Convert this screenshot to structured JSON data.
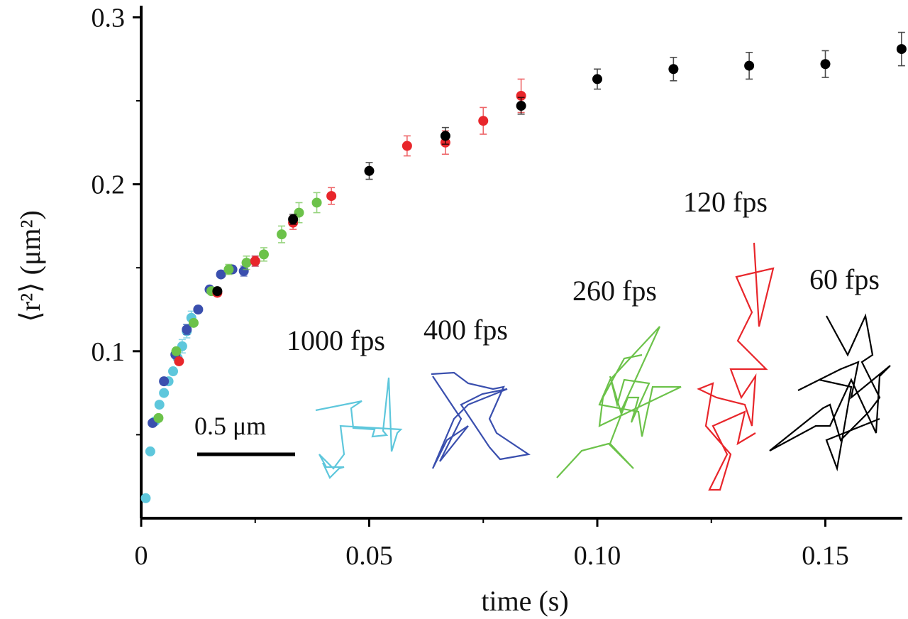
{
  "chart_data": {
    "type": "scatter",
    "title": "",
    "xlabel": "time (s)",
    "ylabel": "⟨r²⟩ (μm²)",
    "xlim": [
      0,
      0.168
    ],
    "ylim": [
      0,
      0.31
    ],
    "grid": false,
    "x_ticks": [
      {
        "value": 0,
        "label": "0"
      },
      {
        "value": 0.05,
        "label": "0.05"
      },
      {
        "value": 0.1,
        "label": "0.10"
      },
      {
        "value": 0.15,
        "label": "0.15"
      }
    ],
    "y_ticks": [
      {
        "value": 0.1,
        "label": "0.1"
      },
      {
        "value": 0.2,
        "label": "0.2"
      },
      {
        "value": 0.3,
        "label": "0.3"
      }
    ],
    "series": [
      {
        "name": "1000 fps",
        "color": "#5ec7dc",
        "points": [
          {
            "x": 0.001,
            "y": 0.012,
            "err": 0
          },
          {
            "x": 0.002,
            "y": 0.04,
            "err": 0
          },
          {
            "x": 0.003,
            "y": 0.058,
            "err": 0
          },
          {
            "x": 0.004,
            "y": 0.068,
            "err": 0
          },
          {
            "x": 0.005,
            "y": 0.075,
            "err": 0
          },
          {
            "x": 0.006,
            "y": 0.082,
            "err": 0
          },
          {
            "x": 0.007,
            "y": 0.088,
            "err": 0
          },
          {
            "x": 0.008,
            "y": 0.096,
            "err": 0.003
          },
          {
            "x": 0.009,
            "y": 0.103,
            "err": 0.004
          },
          {
            "x": 0.01,
            "y": 0.112,
            "err": 0.004
          },
          {
            "x": 0.011,
            "y": 0.12,
            "err": 0.004
          }
        ]
      },
      {
        "name": "400 fps",
        "color": "#3a4fae",
        "points": [
          {
            "x": 0.0025,
            "y": 0.057,
            "err": 0
          },
          {
            "x": 0.005,
            "y": 0.082,
            "err": 0
          },
          {
            "x": 0.0075,
            "y": 0.098,
            "err": 0
          },
          {
            "x": 0.01,
            "y": 0.113,
            "err": 0.003
          },
          {
            "x": 0.0125,
            "y": 0.125,
            "err": 0
          },
          {
            "x": 0.015,
            "y": 0.137,
            "err": 0
          },
          {
            "x": 0.0175,
            "y": 0.146,
            "err": 0
          },
          {
            "x": 0.02,
            "y": 0.149,
            "err": 0
          },
          {
            "x": 0.0225,
            "y": 0.148,
            "err": 0.003
          },
          {
            "x": 0.025,
            "y": 0.154,
            "err": 0.003
          }
        ]
      },
      {
        "name": "260 fps",
        "color": "#6cc24a",
        "points": [
          {
            "x": 0.0038,
            "y": 0.06,
            "err": 0
          },
          {
            "x": 0.0077,
            "y": 0.1,
            "err": 0
          },
          {
            "x": 0.0115,
            "y": 0.117,
            "err": 0
          },
          {
            "x": 0.0154,
            "y": 0.136,
            "err": 0
          },
          {
            "x": 0.0192,
            "y": 0.149,
            "err": 0.003
          },
          {
            "x": 0.0231,
            "y": 0.153,
            "err": 0.004
          },
          {
            "x": 0.0269,
            "y": 0.158,
            "err": 0.004
          },
          {
            "x": 0.0308,
            "y": 0.17,
            "err": 0.005
          },
          {
            "x": 0.0346,
            "y": 0.183,
            "err": 0.006
          },
          {
            "x": 0.0385,
            "y": 0.189,
            "err": 0.006
          }
        ]
      },
      {
        "name": "120 fps",
        "color": "#e8262b",
        "points": [
          {
            "x": 0.0083,
            "y": 0.094,
            "err": 0
          },
          {
            "x": 0.0167,
            "y": 0.135,
            "err": 0
          },
          {
            "x": 0.025,
            "y": 0.154,
            "err": 0.003
          },
          {
            "x": 0.0333,
            "y": 0.177,
            "err": 0.004
          },
          {
            "x": 0.0417,
            "y": 0.193,
            "err": 0.005
          },
          {
            "x": 0.0583,
            "y": 0.223,
            "err": 0.006
          },
          {
            "x": 0.0667,
            "y": 0.225,
            "err": 0.007
          },
          {
            "x": 0.075,
            "y": 0.238,
            "err": 0.008
          },
          {
            "x": 0.0833,
            "y": 0.253,
            "err": 0.01
          }
        ]
      },
      {
        "name": "60 fps",
        "color": "#000000",
        "points": [
          {
            "x": 0.0167,
            "y": 0.136,
            "err": 0
          },
          {
            "x": 0.0333,
            "y": 0.179,
            "err": 0.003
          },
          {
            "x": 0.05,
            "y": 0.208,
            "err": 0.005
          },
          {
            "x": 0.0667,
            "y": 0.229,
            "err": 0.005
          },
          {
            "x": 0.0833,
            "y": 0.247,
            "err": 0.005
          },
          {
            "x": 0.1,
            "y": 0.263,
            "err": 0.006
          },
          {
            "x": 0.1167,
            "y": 0.269,
            "err": 0.007
          },
          {
            "x": 0.1333,
            "y": 0.271,
            "err": 0.008
          },
          {
            "x": 0.15,
            "y": 0.272,
            "err": 0.008
          },
          {
            "x": 0.1667,
            "y": 0.281,
            "err": 0.01
          }
        ]
      }
    ],
    "annotations": {
      "scale_bar": "0.5 μm",
      "trace_labels": [
        "1000 fps",
        "400 fps",
        "260 fps",
        "120 fps",
        "60 fps"
      ]
    }
  }
}
